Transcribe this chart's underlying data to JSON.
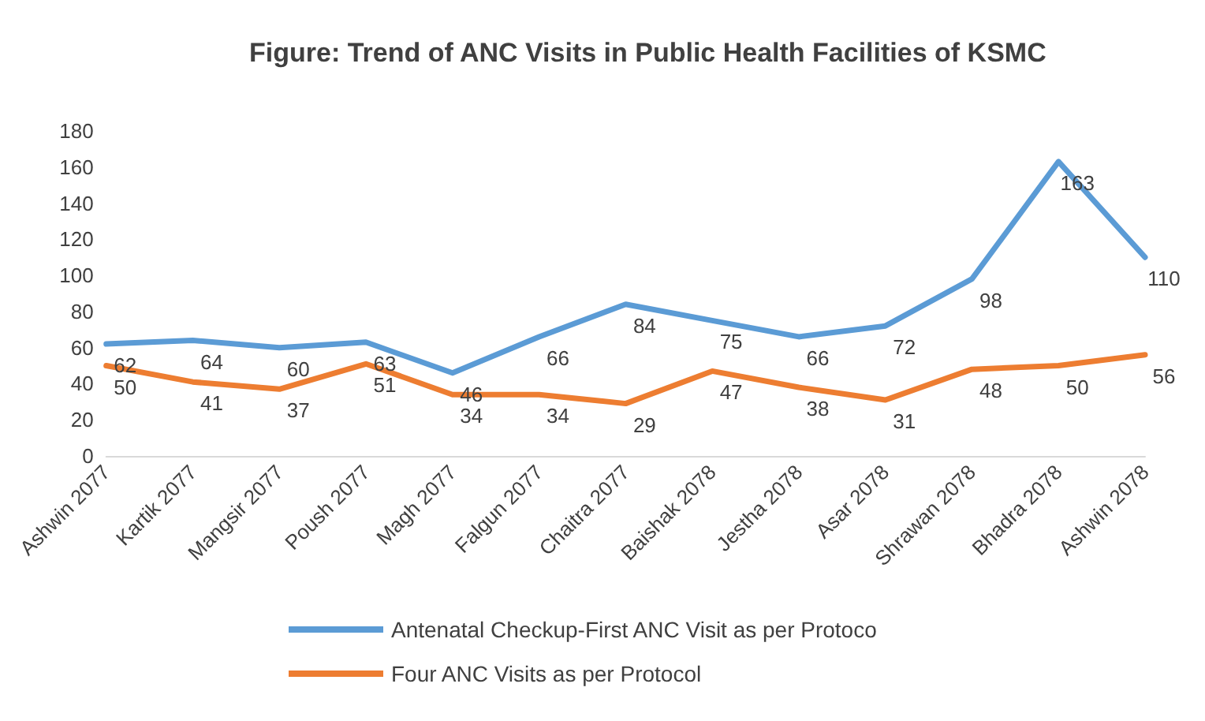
{
  "chart_data": {
    "type": "line",
    "title": "Figure: Trend of ANC Visits in Public Health Facilities of KSMC",
    "categories": [
      "Ashwin 2077",
      "Kartik 2077",
      "Mangsir 2077",
      "Poush 2077",
      "Magh 2077",
      "Falgun 2077",
      "Chaitra 2077",
      "Baishak 2078",
      "Jestha 2078",
      "Asar 2078",
      "Shrawan 2078",
      "Bhadra 2078",
      "Ashwin 2078"
    ],
    "series": [
      {
        "name": "Antenatal Checkup-First ANC Visit as per Protoco",
        "color": "#5b9bd5",
        "values": [
          62,
          64,
          60,
          63,
          46,
          66,
          84,
          75,
          66,
          72,
          98,
          163,
          110
        ]
      },
      {
        "name": "Four ANC Visits as per Protocol",
        "color": "#ed7d31",
        "values": [
          50,
          41,
          37,
          51,
          34,
          34,
          29,
          47,
          38,
          31,
          48,
          50,
          56
        ]
      }
    ],
    "ylim": [
      0,
      180
    ],
    "yticks": [
      0,
      20,
      40,
      60,
      80,
      100,
      120,
      140,
      160,
      180
    ],
    "grid": false,
    "legend": "bottom",
    "data_labels": true,
    "marker": "none",
    "line_style": "solid"
  }
}
